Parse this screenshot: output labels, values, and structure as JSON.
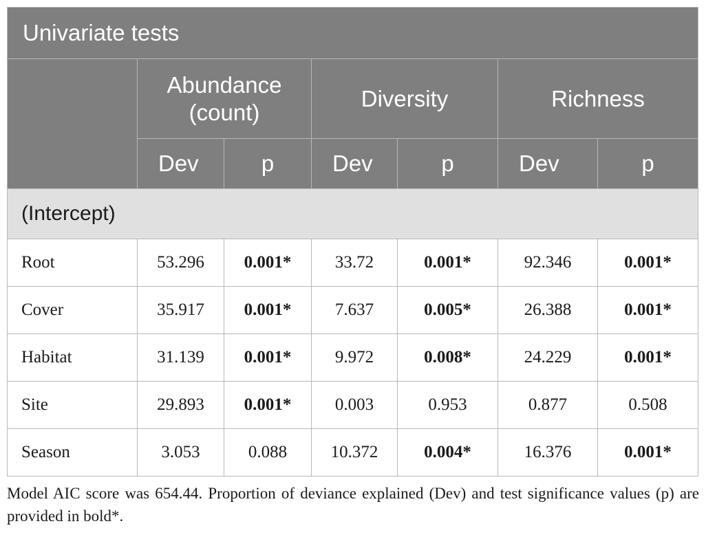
{
  "table": {
    "title": "Univariate tests",
    "groups": [
      {
        "label_line1": "Abundance",
        "label_line2": "(count)"
      },
      {
        "label_line1": "Diversity",
        "label_line2": ""
      },
      {
        "label_line1": "Richness",
        "label_line2": ""
      }
    ],
    "subheaders": [
      "Dev",
      "p",
      "Dev",
      "p",
      "Dev",
      "p"
    ],
    "section_label": "(Intercept)",
    "rows": [
      {
        "label": "Root",
        "cells": [
          {
            "v": "53.296",
            "bold": false
          },
          {
            "v": "0.001*",
            "bold": true
          },
          {
            "v": "33.72",
            "bold": false
          },
          {
            "v": "0.001*",
            "bold": true
          },
          {
            "v": "92.346",
            "bold": false
          },
          {
            "v": "0.001*",
            "bold": true
          }
        ]
      },
      {
        "label": "Cover",
        "cells": [
          {
            "v": "35.917",
            "bold": false
          },
          {
            "v": "0.001*",
            "bold": true
          },
          {
            "v": "7.637",
            "bold": false
          },
          {
            "v": "0.005*",
            "bold": true
          },
          {
            "v": "26.388",
            "bold": false
          },
          {
            "v": "0.001*",
            "bold": true
          }
        ]
      },
      {
        "label": "Habitat",
        "cells": [
          {
            "v": "31.139",
            "bold": false
          },
          {
            "v": "0.001*",
            "bold": true
          },
          {
            "v": "9.972",
            "bold": false
          },
          {
            "v": "0.008*",
            "bold": true
          },
          {
            "v": "24.229",
            "bold": false
          },
          {
            "v": "0.001*",
            "bold": true
          }
        ]
      },
      {
        "label": "Site",
        "cells": [
          {
            "v": "29.893",
            "bold": false
          },
          {
            "v": "0.001*",
            "bold": true
          },
          {
            "v": "0.003",
            "bold": false
          },
          {
            "v": "0.953",
            "bold": false
          },
          {
            "v": "0.877",
            "bold": false
          },
          {
            "v": "0.508",
            "bold": false
          }
        ]
      },
      {
        "label": "Season",
        "cells": [
          {
            "v": "3.053",
            "bold": false
          },
          {
            "v": "0.088",
            "bold": false
          },
          {
            "v": "10.372",
            "bold": false
          },
          {
            "v": "0.004*",
            "bold": true
          },
          {
            "v": "16.376",
            "bold": false
          },
          {
            "v": "0.001*",
            "bold": true
          }
        ]
      }
    ]
  },
  "footnote": "Model AIC score was 654.44. Proportion of deviance explained (Dev) and test significance values (p) are provided in bold*."
}
